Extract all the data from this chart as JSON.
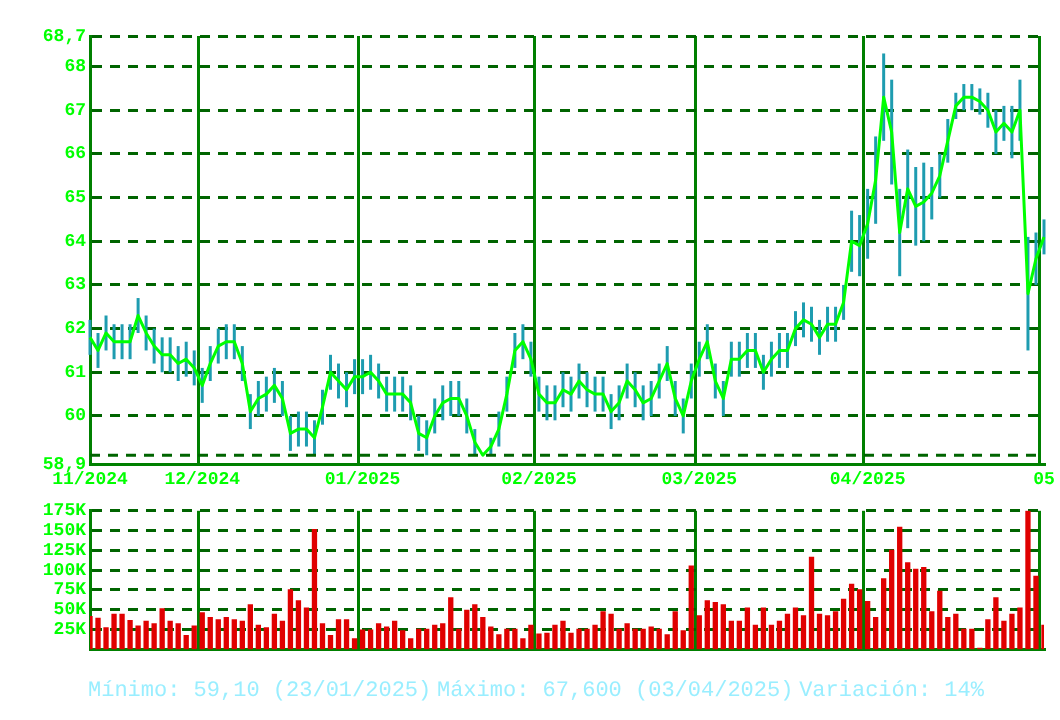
{
  "chart_data": [
    {
      "type": "line",
      "categories": [
        "11/2024",
        null,
        null,
        null,
        null,
        null,
        null,
        null,
        null,
        null,
        null,
        null,
        null,
        null,
        "12/2024",
        null,
        null,
        null,
        null,
        null,
        null,
        null,
        null,
        null,
        null,
        null,
        null,
        null,
        null,
        null,
        null,
        null,
        null,
        null,
        "01/2025",
        null,
        null,
        null,
        null,
        null,
        null,
        null,
        null,
        null,
        null,
        null,
        null,
        null,
        null,
        null,
        null,
        null,
        null,
        null,
        null,
        null,
        "02/2025",
        null,
        null,
        null,
        null,
        null,
        null,
        null,
        null,
        null,
        null,
        null,
        null,
        null,
        null,
        null,
        null,
        null,
        null,
        null,
        "03/2025",
        null,
        null,
        null,
        null,
        null,
        null,
        null,
        null,
        null,
        null,
        null,
        null,
        null,
        null,
        null,
        null,
        null,
        null,
        null,
        null,
        "04/2025",
        null,
        null,
        null,
        null,
        null,
        null,
        null,
        null,
        null,
        null,
        null,
        null,
        null,
        null,
        null,
        null,
        null,
        null,
        null,
        null,
        null,
        "05"
      ],
      "series": [
        {
          "color": "#00ff00",
          "values": [
            61.8,
            61.5,
            61.9,
            61.7,
            61.7,
            61.7,
            62.3,
            61.9,
            61.6,
            61.4,
            61.4,
            61.2,
            61.3,
            61.1,
            60.7,
            61.2,
            61.6,
            61.7,
            61.7,
            61.2,
            60.1,
            60.4,
            60.5,
            60.7,
            60.4,
            59.6,
            59.7,
            59.7,
            59.5,
            60.2,
            61.0,
            60.8,
            60.6,
            60.9,
            60.9,
            61.0,
            60.8,
            60.5,
            60.5,
            60.5,
            60.3,
            59.6,
            59.5,
            60.0,
            60.3,
            60.4,
            60.4,
            60.0,
            59.4,
            59.1,
            59.3,
            59.7,
            60.5,
            61.5,
            61.7,
            61.3,
            60.5,
            60.3,
            60.3,
            60.6,
            60.5,
            60.8,
            60.6,
            60.5,
            60.5,
            60.1,
            60.3,
            60.8,
            60.6,
            60.3,
            60.4,
            60.8,
            61.2,
            60.4,
            60.0,
            60.8,
            61.3,
            61.7,
            60.8,
            60.4,
            61.3,
            61.3,
            61.5,
            61.5,
            61.0,
            61.3,
            61.5,
            61.5,
            62.0,
            62.2,
            62.1,
            61.8,
            62.1,
            62.1,
            62.6,
            64.0,
            63.9,
            64.4,
            65.4,
            67.3,
            66.5,
            64.2,
            65.2,
            64.8,
            64.9,
            65.1,
            65.5,
            66.3,
            67.1,
            67.3,
            67.3,
            67.2,
            67.0,
            66.5,
            66.7,
            66.5,
            67.0,
            62.8,
            63.6,
            64.1
          ],
          "errors": [
            0.4,
            0.4,
            0.4,
            0.4,
            0.4,
            0.4,
            0.4,
            0.4,
            0.4,
            0.4,
            0.4,
            0.4,
            0.4,
            0.4,
            0.4,
            0.4,
            0.4,
            0.4,
            0.4,
            0.4,
            0.4,
            0.4,
            0.4,
            0.4,
            0.4,
            0.4,
            0.4,
            0.4,
            0.4,
            0.4,
            0.4,
            0.4,
            0.4,
            0.4,
            0.4,
            0.4,
            0.4,
            0.4,
            0.4,
            0.4,
            0.4,
            0.4,
            0.4,
            0.4,
            0.4,
            0.4,
            0.4,
            0.4,
            0.3,
            null,
            0.2,
            0.4,
            0.4,
            0.4,
            0.4,
            0.4,
            0.4,
            0.4,
            0.4,
            0.4,
            0.4,
            0.4,
            0.4,
            0.4,
            0.4,
            0.4,
            0.4,
            0.4,
            0.4,
            0.4,
            0.4,
            0.4,
            0.4,
            0.4,
            0.4,
            0.4,
            0.4,
            0.4,
            0.4,
            0.4,
            0.4,
            0.4,
            0.4,
            0.4,
            0.4,
            0.4,
            0.4,
            0.4,
            0.4,
            0.4,
            0.4,
            0.4,
            0.4,
            0.4,
            0.4,
            0.7,
            0.7,
            0.8,
            1.0,
            1.0,
            1.2,
            1.0,
            0.9,
            0.9,
            0.9,
            0.6,
            0.5,
            0.5,
            0.3,
            0.3,
            0.3,
            0.3,
            0.4,
            0.5,
            0.4,
            0.6,
            0.7,
            1.3,
            0.6,
            0.4
          ]
        }
      ],
      "ylim": [
        58.9,
        68.7
      ],
      "yticks": [
        {
          "value": 58.9,
          "label": "58,9"
        },
        60,
        61,
        62,
        63,
        64,
        65,
        66,
        67,
        68,
        {
          "value": 68.7,
          "label": "68,7"
        }
      ],
      "ref_lines": [
        {
          "axis": "y",
          "value": 59.1,
          "color": "#006400",
          "line_style": "dashed"
        }
      ],
      "grid": true,
      "marker": "none"
    },
    {
      "type": "bar",
      "categories": [
        null,
        null,
        null,
        null,
        null,
        null,
        null,
        null,
        null,
        null,
        null,
        null,
        null,
        null,
        null,
        null,
        null,
        null,
        null,
        null,
        null,
        null,
        null,
        null,
        null,
        null,
        null,
        null,
        null,
        null,
        null,
        null,
        null,
        null,
        null,
        null,
        null,
        null,
        null,
        null,
        null,
        null,
        null,
        null,
        null,
        null,
        null,
        null,
        null,
        null,
        null,
        null,
        null,
        null,
        null,
        null,
        null,
        null,
        null,
        null,
        null,
        null,
        null,
        null,
        null,
        null,
        null,
        null,
        null,
        null,
        null,
        null,
        null,
        null,
        null,
        null,
        null,
        null,
        null,
        null,
        null,
        null,
        null,
        null,
        null,
        null,
        null,
        null,
        null,
        null,
        null,
        null,
        null,
        null,
        null,
        null,
        null,
        null,
        null,
        null,
        null,
        null,
        null,
        null,
        null,
        null,
        null,
        null,
        null,
        null,
        null,
        null,
        null,
        null,
        null,
        null,
        null,
        null,
        null,
        null
      ],
      "series": [
        {
          "color": "#e00000",
          "values": [
            41000,
            39000,
            27000,
            44000,
            44000,
            36000,
            29000,
            35000,
            32000,
            51000,
            35000,
            32000,
            17000,
            29000,
            46000,
            40000,
            37000,
            40000,
            37000,
            35000,
            56000,
            30000,
            27000,
            44000,
            35000,
            75000,
            61000,
            52000,
            151000,
            32000,
            17000,
            37000,
            37000,
            13000,
            24000,
            24000,
            32000,
            28000,
            35000,
            23000,
            13000,
            25000,
            25000,
            30000,
            32000,
            65000,
            25000,
            49000,
            56000,
            40000,
            28000,
            18000,
            25000,
            25000,
            13000,
            30000,
            19000,
            20000,
            30000,
            35000,
            20000,
            25000,
            25000,
            30000,
            47000,
            44000,
            25000,
            32000,
            25000,
            25000,
            28000,
            25000,
            18000,
            47000,
            23000,
            105000,
            42000,
            61000,
            59000,
            56000,
            35000,
            35000,
            52000,
            30000,
            52000,
            30000,
            35000,
            44000,
            52000,
            42000,
            116000,
            44000,
            42000,
            47000,
            63000,
            82000,
            75000,
            60000,
            40000,
            89000,
            125000,
            154000,
            109000,
            101000,
            103000,
            47000,
            73000,
            40000,
            44000,
            25000,
            25000,
            1000,
            37000,
            65000,
            35000,
            44000,
            52000,
            175000,
            92000,
            30000
          ]
        }
      ],
      "ylim": [
        0,
        175000
      ],
      "yticks": [
        {
          "value": 25000,
          "label": "25K"
        },
        {
          "value": 50000,
          "label": "50K"
        },
        {
          "value": 75000,
          "label": "75K"
        },
        {
          "value": 100000,
          "label": "100K"
        },
        {
          "value": 125000,
          "label": "125K"
        },
        {
          "value": 150000,
          "label": "150K"
        },
        {
          "value": 175000,
          "label": "175K"
        }
      ],
      "grid": true,
      "tick_labels": "y",
      "annotations": [
        "Mínimo: 59,10 (23/01/2025)",
        "Máximo: 67,600 (03/04/2025)",
        "Variación: 14%"
      ]
    }
  ]
}
